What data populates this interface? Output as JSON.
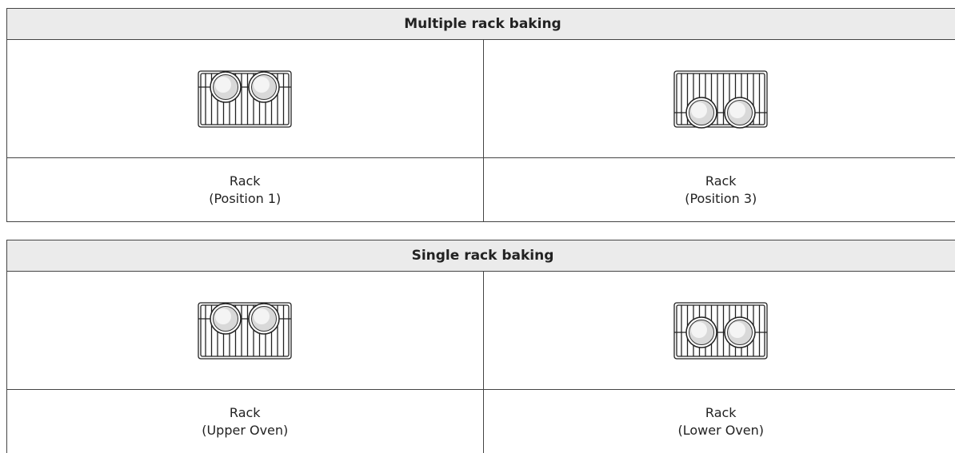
{
  "tables": [
    {
      "title": "Multiple rack baking",
      "captions": [
        [
          "Rack",
          "(Position 1)"
        ],
        [
          "Rack",
          "(Position 3)"
        ]
      ]
    },
    {
      "title": "Single rack baking",
      "captions": [
        [
          "Rack",
          "(Upper Oven)"
        ],
        [
          "Rack",
          "(Lower Oven)"
        ]
      ]
    }
  ]
}
